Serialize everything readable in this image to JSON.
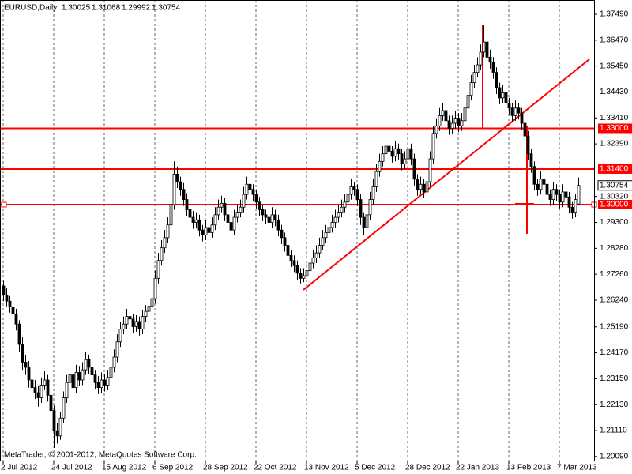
{
  "chart_data": {
    "type": "candlestick",
    "symbol": "EURUSD,Daily",
    "watermark": "MetaTrader, © 2001-2012, MetaQuotes Software Corp.",
    "bull_color": "#ffffff",
    "bear_color": "#000000",
    "wick_color": "#000000",
    "grid": true,
    "ylim": [
      1.1993,
      1.3805
    ],
    "yticks": [
      {
        "value": 1.3749,
        "label": "1.37490"
      },
      {
        "value": 1.3647,
        "label": "1.36470"
      },
      {
        "value": 1.3545,
        "label": "1.35450"
      },
      {
        "value": 1.3443,
        "label": "1.34430"
      },
      {
        "value": 1.3341,
        "label": "1.33410"
      },
      {
        "value": 1.3239,
        "label": "1.32390"
      },
      {
        "value": 1.3032,
        "label": "1.30320"
      },
      {
        "value": 1.293,
        "label": "1.29300"
      },
      {
        "value": 1.2828,
        "label": "1.28280"
      },
      {
        "value": 1.2726,
        "label": "1.27260"
      },
      {
        "value": 1.2624,
        "label": "1.26240"
      },
      {
        "value": 1.2519,
        "label": "1.25190"
      },
      {
        "value": 1.2417,
        "label": "1.24170"
      },
      {
        "value": 1.2315,
        "label": "1.23150"
      },
      {
        "value": 1.2213,
        "label": "1.22130"
      },
      {
        "value": 1.2111,
        "label": "1.21110"
      },
      {
        "value": 1.2009,
        "label": "1.20090"
      }
    ],
    "hlines": [
      {
        "value": 1.33,
        "label": "1.33000",
        "color": "#ff0000"
      },
      {
        "value": 1.314,
        "label": "1.31400",
        "color": "#ff0000"
      },
      {
        "value": 1.3,
        "label": "1.30000",
        "color": "#ff0000"
      }
    ],
    "categories": [
      "2 Jul 2012",
      null,
      null,
      null,
      null,
      null,
      null,
      null,
      null,
      null,
      null,
      null,
      null,
      null,
      null,
      null,
      "24 Jul 2012",
      null,
      null,
      null,
      null,
      null,
      null,
      null,
      null,
      null,
      null,
      null,
      null,
      null,
      null,
      null,
      "15 Aug 2012",
      null,
      null,
      null,
      null,
      null,
      null,
      null,
      null,
      null,
      null,
      null,
      null,
      null,
      null,
      null,
      "6 Sep 2012",
      null,
      null,
      null,
      null,
      null,
      null,
      null,
      null,
      null,
      null,
      null,
      null,
      null,
      null,
      null,
      "28 Sep 2012",
      null,
      null,
      null,
      null,
      null,
      null,
      null,
      null,
      null,
      null,
      null,
      null,
      null,
      null,
      null,
      "22 Oct 2012",
      null,
      null,
      null,
      null,
      null,
      null,
      null,
      null,
      null,
      null,
      null,
      null,
      null,
      null,
      null,
      "13 Nov 2012",
      null,
      null,
      null,
      null,
      null,
      null,
      null,
      null,
      null,
      null,
      null,
      null,
      null,
      null,
      null,
      "5 Dec 2012",
      null,
      null,
      null,
      null,
      null,
      null,
      null,
      null,
      null,
      null,
      null,
      null,
      null,
      null,
      null,
      "28 Dec 2012",
      null,
      null,
      null,
      null,
      null,
      null,
      null,
      null,
      null,
      null,
      null,
      null,
      null,
      null,
      null,
      "22 Jan 2013",
      null,
      null,
      null,
      null,
      null,
      null,
      null,
      null,
      null,
      null,
      null,
      null,
      null,
      null,
      null,
      "13 Feb 2013",
      null,
      null,
      null,
      null,
      null,
      null,
      null,
      null,
      null,
      null,
      null,
      null,
      null,
      null,
      null,
      "7 Mar 2013",
      null,
      null,
      null,
      null,
      null,
      null
    ],
    "ohlc": [
      [
        1.268,
        1.27,
        1.262,
        1.2644
      ],
      [
        1.2644,
        1.267,
        1.26,
        1.262
      ],
      [
        1.262,
        1.264,
        1.2575,
        1.2598
      ],
      [
        1.2598,
        1.2625,
        1.255,
        1.257
      ],
      [
        1.257,
        1.259,
        1.2505,
        1.253
      ],
      [
        1.253,
        1.2545,
        1.242,
        1.245
      ],
      [
        1.245,
        1.248,
        1.235,
        1.238
      ],
      [
        1.238,
        1.241,
        1.233,
        1.236
      ],
      [
        1.236,
        1.2385,
        1.228,
        1.231
      ],
      [
        1.231,
        1.234,
        1.225,
        1.228
      ],
      [
        1.228,
        1.231,
        1.2235,
        1.226
      ],
      [
        1.226,
        1.2285,
        1.2205,
        1.224
      ],
      [
        1.224,
        1.232,
        1.222,
        1.229
      ],
      [
        1.229,
        1.2345,
        1.227,
        1.231
      ],
      [
        1.231,
        1.233,
        1.2225,
        1.225
      ],
      [
        1.225,
        1.227,
        1.216,
        1.219
      ],
      [
        1.219,
        1.221,
        1.2043,
        1.211
      ],
      [
        1.211,
        1.214,
        1.206,
        1.209
      ],
      [
        1.209,
        1.2185,
        1.2075,
        1.216
      ],
      [
        1.216,
        1.2265,
        1.214,
        1.224
      ],
      [
        1.224,
        1.233,
        1.222,
        1.23
      ],
      [
        1.23,
        1.236,
        1.2275,
        1.233
      ],
      [
        1.233,
        1.235,
        1.2255,
        1.228
      ],
      [
        1.228,
        1.237,
        1.226,
        1.234
      ],
      [
        1.234,
        1.2365,
        1.2285,
        1.231
      ],
      [
        1.231,
        1.238,
        1.229,
        1.235
      ],
      [
        1.235,
        1.242,
        1.233,
        1.239
      ],
      [
        1.239,
        1.241,
        1.2335,
        1.236
      ],
      [
        1.236,
        1.2385,
        1.2305,
        1.233
      ],
      [
        1.233,
        1.235,
        1.2275,
        1.23
      ],
      [
        1.23,
        1.2325,
        1.2255,
        1.228
      ],
      [
        1.228,
        1.234,
        1.226,
        1.231
      ],
      [
        1.231,
        1.2335,
        1.2265,
        1.229
      ],
      [
        1.229,
        1.235,
        1.227,
        1.232
      ],
      [
        1.232,
        1.239,
        1.23,
        1.236
      ],
      [
        1.236,
        1.243,
        1.234,
        1.24
      ],
      [
        1.24,
        1.249,
        1.238,
        1.246
      ],
      [
        1.246,
        1.254,
        1.244,
        1.251
      ],
      [
        1.251,
        1.256,
        1.249,
        1.253
      ],
      [
        1.253,
        1.259,
        1.251,
        1.256
      ],
      [
        1.256,
        1.258,
        1.2525,
        1.255
      ],
      [
        1.255,
        1.257,
        1.2495,
        1.252
      ],
      [
        1.252,
        1.2565,
        1.25,
        1.254
      ],
      [
        1.254,
        1.256,
        1.2485,
        1.251
      ],
      [
        1.251,
        1.2585,
        1.249,
        1.256
      ],
      [
        1.256,
        1.2605,
        1.254,
        1.258
      ],
      [
        1.258,
        1.2625,
        1.256,
        1.26
      ],
      [
        1.26,
        1.266,
        1.258,
        1.263
      ],
      [
        1.263,
        1.274,
        1.261,
        1.271
      ],
      [
        1.271,
        1.281,
        1.269,
        1.278
      ],
      [
        1.278,
        1.286,
        1.276,
        1.283
      ],
      [
        1.283,
        1.29,
        1.281,
        1.287
      ],
      [
        1.287,
        1.295,
        1.285,
        1.292
      ],
      [
        1.292,
        1.303,
        1.29,
        1.3
      ],
      [
        1.3,
        1.317,
        1.298,
        1.312
      ],
      [
        1.312,
        1.315,
        1.3065,
        1.309
      ],
      [
        1.309,
        1.311,
        1.3035,
        1.306
      ],
      [
        1.306,
        1.3085,
        1.2995,
        1.302
      ],
      [
        1.302,
        1.3045,
        1.2955,
        1.298
      ],
      [
        1.298,
        1.3,
        1.2925,
        1.295
      ],
      [
        1.295,
        1.2975,
        1.2905,
        1.293
      ],
      [
        1.293,
        1.297,
        1.291,
        1.294
      ],
      [
        1.294,
        1.296,
        1.2875,
        1.29
      ],
      [
        1.29,
        1.292,
        1.2855,
        1.288
      ],
      [
        1.288,
        1.294,
        1.286,
        1.291
      ],
      [
        1.291,
        1.293,
        1.2865,
        1.289
      ],
      [
        1.289,
        1.295,
        1.287,
        1.292
      ],
      [
        1.292,
        1.299,
        1.29,
        1.296
      ],
      [
        1.296,
        1.302,
        1.294,
        1.299
      ],
      [
        1.299,
        1.3035,
        1.297,
        1.3005
      ],
      [
        1.3005,
        1.3025,
        1.2935,
        1.296
      ],
      [
        1.296,
        1.298,
        1.2905,
        1.293
      ],
      [
        1.293,
        1.295,
        1.2875,
        1.29
      ],
      [
        1.29,
        1.298,
        1.288,
        1.295
      ],
      [
        1.295,
        1.3,
        1.293,
        1.297
      ],
      [
        1.297,
        1.302,
        1.295,
        1.299
      ],
      [
        1.299,
        1.307,
        1.297,
        1.304
      ],
      [
        1.304,
        1.311,
        1.302,
        1.308
      ],
      [
        1.308,
        1.31,
        1.3035,
        1.306
      ],
      [
        1.306,
        1.308,
        1.3015,
        1.304
      ],
      [
        1.304,
        1.306,
        1.2985,
        1.301
      ],
      [
        1.301,
        1.303,
        1.2955,
        1.298
      ],
      [
        1.298,
        1.3,
        1.2935,
        1.296
      ],
      [
        1.296,
        1.298,
        1.2925,
        1.295
      ],
      [
        1.295,
        1.297,
        1.2905,
        1.293
      ],
      [
        1.293,
        1.299,
        1.291,
        1.296
      ],
      [
        1.296,
        1.298,
        1.2915,
        1.294
      ],
      [
        1.294,
        1.296,
        1.2875,
        1.29
      ],
      [
        1.29,
        1.292,
        1.2845,
        1.287
      ],
      [
        1.287,
        1.289,
        1.2815,
        1.284
      ],
      [
        1.284,
        1.286,
        1.2775,
        1.28
      ],
      [
        1.28,
        1.282,
        1.2755,
        1.278
      ],
      [
        1.278,
        1.28,
        1.2735,
        1.276
      ],
      [
        1.276,
        1.278,
        1.2705,
        1.273
      ],
      [
        1.273,
        1.275,
        1.269,
        1.271
      ],
      [
        1.271,
        1.275,
        1.2695,
        1.272
      ],
      [
        1.272,
        1.277,
        1.27,
        1.274
      ],
      [
        1.274,
        1.28,
        1.272,
        1.277
      ],
      [
        1.277,
        1.282,
        1.275,
        1.279
      ],
      [
        1.279,
        1.284,
        1.277,
        1.281
      ],
      [
        1.281,
        1.287,
        1.279,
        1.284
      ],
      [
        1.284,
        1.29,
        1.282,
        1.287
      ],
      [
        1.287,
        1.292,
        1.285,
        1.289
      ],
      [
        1.289,
        1.294,
        1.287,
        1.291
      ],
      [
        1.291,
        1.296,
        1.289,
        1.293
      ],
      [
        1.293,
        1.298,
        1.291,
        1.295
      ],
      [
        1.295,
        1.3,
        1.293,
        1.297
      ],
      [
        1.297,
        1.302,
        1.295,
        1.299
      ],
      [
        1.299,
        1.304,
        1.297,
        1.301
      ],
      [
        1.301,
        1.307,
        1.299,
        1.304
      ],
      [
        1.304,
        1.31,
        1.302,
        1.307
      ],
      [
        1.307,
        1.309,
        1.3035,
        1.306
      ],
      [
        1.306,
        1.308,
        1.2995,
        1.302
      ],
      [
        1.302,
        1.304,
        1.292,
        1.295
      ],
      [
        1.295,
        1.297,
        1.288,
        1.291
      ],
      [
        1.291,
        1.299,
        1.289,
        1.296
      ],
      [
        1.296,
        1.305,
        1.294,
        1.302
      ],
      [
        1.302,
        1.31,
        1.3,
        1.307
      ],
      [
        1.307,
        1.316,
        1.305,
        1.313
      ],
      [
        1.313,
        1.32,
        1.311,
        1.317
      ],
      [
        1.317,
        1.323,
        1.315,
        1.32
      ],
      [
        1.32,
        1.326,
        1.318,
        1.323
      ],
      [
        1.323,
        1.325,
        1.3185,
        1.321
      ],
      [
        1.321,
        1.323,
        1.3165,
        1.319
      ],
      [
        1.319,
        1.325,
        1.317,
        1.322
      ],
      [
        1.322,
        1.324,
        1.3175,
        1.32
      ],
      [
        1.32,
        1.322,
        1.3135,
        1.316
      ],
      [
        1.316,
        1.321,
        1.314,
        1.318
      ],
      [
        1.318,
        1.325,
        1.316,
        1.322
      ],
      [
        1.322,
        1.324,
        1.3155,
        1.318
      ],
      [
        1.318,
        1.32,
        1.3075,
        1.31
      ],
      [
        1.31,
        1.312,
        1.3035,
        1.306
      ],
      [
        1.306,
        1.311,
        1.304,
        1.308
      ],
      [
        1.308,
        1.31,
        1.3025,
        1.305
      ],
      [
        1.305,
        1.312,
        1.303,
        1.309
      ],
      [
        1.309,
        1.321,
        1.307,
        1.318
      ],
      [
        1.318,
        1.331,
        1.316,
        1.328
      ],
      [
        1.328,
        1.334,
        1.326,
        1.331
      ],
      [
        1.331,
        1.338,
        1.329,
        1.335
      ],
      [
        1.335,
        1.34,
        1.333,
        1.337
      ],
      [
        1.337,
        1.339,
        1.3305,
        1.333
      ],
      [
        1.333,
        1.335,
        1.3275,
        1.33
      ],
      [
        1.33,
        1.335,
        1.328,
        1.332
      ],
      [
        1.332,
        1.337,
        1.33,
        1.334
      ],
      [
        1.334,
        1.336,
        1.3285,
        1.331
      ],
      [
        1.331,
        1.336,
        1.329,
        1.333
      ],
      [
        1.333,
        1.341,
        1.331,
        1.338
      ],
      [
        1.338,
        1.346,
        1.336,
        1.343
      ],
      [
        1.343,
        1.351,
        1.341,
        1.348
      ],
      [
        1.348,
        1.355,
        1.346,
        1.352
      ],
      [
        1.352,
        1.358,
        1.35,
        1.355
      ],
      [
        1.355,
        1.363,
        1.353,
        1.36
      ],
      [
        1.36,
        1.3705,
        1.358,
        1.364
      ],
      [
        1.364,
        1.366,
        1.3555,
        1.358
      ],
      [
        1.358,
        1.361,
        1.3535,
        1.356
      ],
      [
        1.356,
        1.358,
        1.3495,
        1.352
      ],
      [
        1.352,
        1.354,
        1.3435,
        1.346
      ],
      [
        1.346,
        1.348,
        1.3395,
        1.342
      ],
      [
        1.342,
        1.347,
        1.34,
        1.344
      ],
      [
        1.344,
        1.346,
        1.3375,
        1.34
      ],
      [
        1.34,
        1.342,
        1.3355,
        1.338
      ],
      [
        1.338,
        1.34,
        1.3325,
        1.335
      ],
      [
        1.335,
        1.341,
        1.333,
        1.338
      ],
      [
        1.338,
        1.34,
        1.3335,
        1.336
      ],
      [
        1.336,
        1.338,
        1.3295,
        1.332
      ],
      [
        1.332,
        1.334,
        1.3245,
        1.327
      ],
      [
        1.327,
        1.329,
        1.3175,
        1.32
      ],
      [
        1.32,
        1.322,
        1.3125,
        1.315
      ],
      [
        1.315,
        1.317,
        1.3055,
        1.308
      ],
      [
        1.308,
        1.31,
        1.3035,
        1.306
      ],
      [
        1.306,
        1.313,
        1.304,
        1.31
      ],
      [
        1.31,
        1.312,
        1.3055,
        1.308
      ],
      [
        1.308,
        1.31,
        1.3015,
        1.304
      ],
      [
        1.304,
        1.306,
        1.2995,
        1.302
      ],
      [
        1.302,
        1.309,
        1.3,
        1.306
      ],
      [
        1.306,
        1.308,
        1.3015,
        1.304
      ],
      [
        1.304,
        1.306,
        1.2985,
        1.301
      ],
      [
        1.301,
        1.308,
        1.299,
        1.305
      ],
      [
        1.305,
        1.307,
        1.3005,
        1.303
      ],
      [
        1.303,
        1.305,
        1.2965,
        1.299
      ],
      [
        1.299,
        1.301,
        1.2945,
        1.297
      ],
      [
        1.297,
        1.304,
        1.295,
        1.302
      ],
      [
        1.30025,
        1.31068,
        1.29992,
        1.30754
      ]
    ]
  }
}
